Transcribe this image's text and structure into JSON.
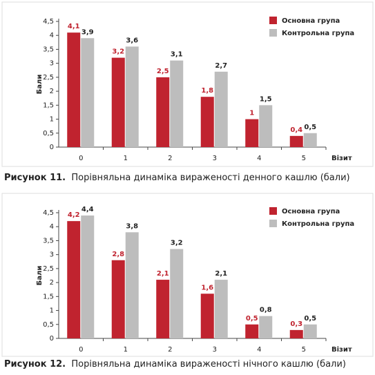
{
  "chart_data": [
    {
      "type": "bar",
      "figure_label": "Рисунок 11.",
      "title": "Порівняльна динаміка вираженості денного кашлю (бали)",
      "xlabel": "Візит",
      "ylabel": "Бали",
      "legend": "top-right",
      "categories": [
        "0",
        "1",
        "2",
        "3",
        "4",
        "5"
      ],
      "series": [
        {
          "name": "Основна група",
          "color": "#c0232f",
          "values": [
            4.1,
            3.2,
            2.5,
            1.8,
            1,
            0.4
          ],
          "value_labels": [
            "4,1",
            "3,2",
            "2,5",
            "1,8",
            "1",
            "0,4"
          ]
        },
        {
          "name": "Контрольна група",
          "color": "#bdbdbd",
          "values": [
            3.9,
            3.6,
            3.1,
            2.7,
            1.5,
            0.5
          ],
          "value_labels": [
            "3,9",
            "3,6",
            "3,1",
            "2,7",
            "1,5",
            "0,5"
          ]
        }
      ],
      "ylim": [
        0,
        4.5
      ],
      "yticks": [
        0,
        {
          "value": 0.5,
          "label": "0,5"
        },
        1,
        {
          "value": 1.5,
          "label": "1,5"
        },
        2,
        {
          "value": 2.5,
          "label": "2,5"
        },
        3,
        {
          "value": 3.5,
          "label": "3,5"
        },
        4,
        {
          "value": 4.5,
          "label": "4,5"
        }
      ]
    },
    {
      "type": "bar",
      "figure_label": "Рисунок 12.",
      "title": "Порівняльна динаміка вираженості нічного кашлю (бали)",
      "xlabel": "Візит",
      "ylabel": "Бали",
      "legend": "top-right",
      "categories": [
        "0",
        "1",
        "2",
        "3",
        "4",
        "5"
      ],
      "series": [
        {
          "name": "Основна група",
          "color": "#c0232f",
          "values": [
            4.2,
            2.8,
            2.1,
            1.6,
            0.5,
            0.3
          ],
          "value_labels": [
            "4,2",
            "2,8",
            "2,1",
            "1,6",
            "0,5",
            "0,3"
          ]
        },
        {
          "name": "Контрольна група",
          "color": "#bdbdbd",
          "values": [
            4.4,
            3.8,
            3.2,
            2.1,
            0.8,
            0.5
          ],
          "value_labels": [
            "4,4",
            "3,8",
            "3,2",
            "2,1",
            "0,8",
            "0,5"
          ]
        }
      ],
      "ylim": [
        0,
        4.5
      ],
      "yticks": [
        0,
        {
          "value": 0.5,
          "label": "0,5"
        },
        1,
        {
          "value": 1.5,
          "label": "1,5"
        },
        2,
        {
          "value": 2.5,
          "label": "2,5"
        },
        3,
        {
          "value": 3.5,
          "label": "3,5"
        },
        4,
        {
          "value": 4.5,
          "label": "4,5"
        }
      ]
    }
  ]
}
